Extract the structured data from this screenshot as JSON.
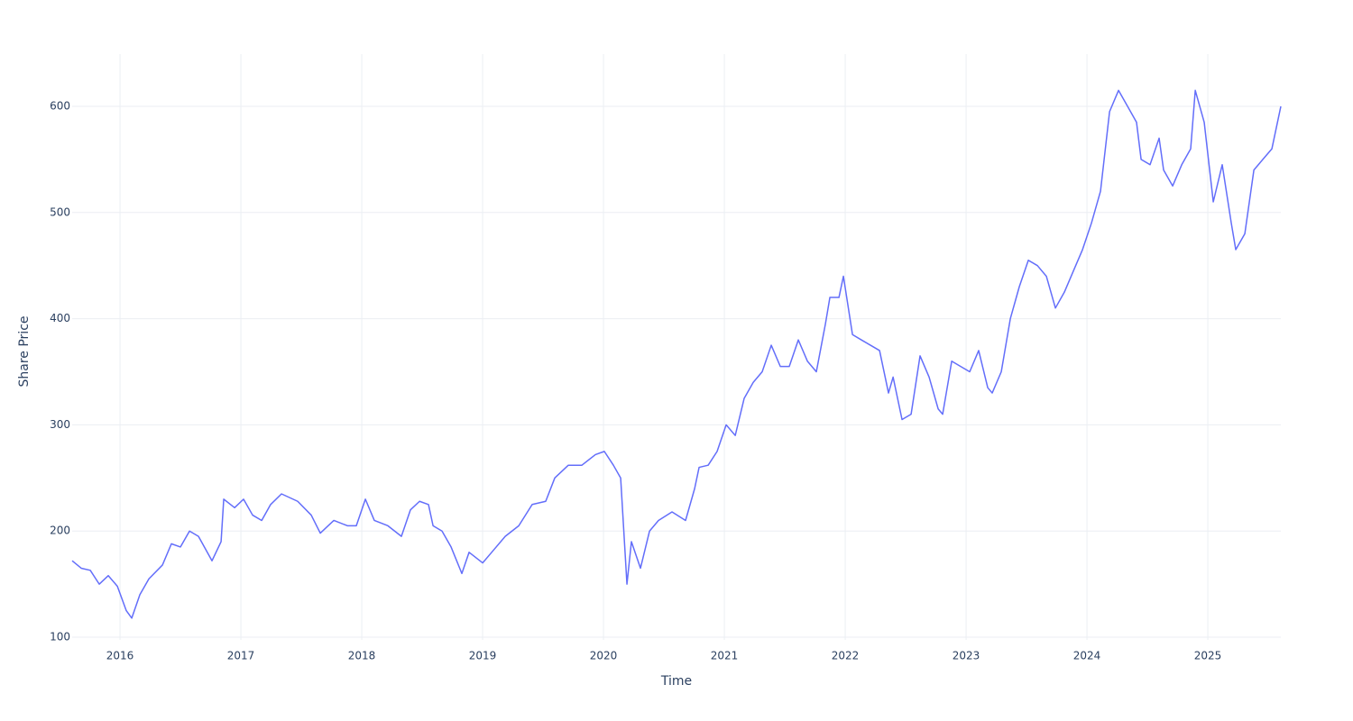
{
  "chart_data": {
    "type": "line",
    "x_label": "Time",
    "y_label": "Share Price",
    "x": [
      2015.604,
      2015.679,
      2015.754,
      2015.828,
      2015.903,
      2015.978,
      2016.052,
      2016.097,
      2016.164,
      2016.239,
      2016.351,
      2016.425,
      2016.5,
      2016.575,
      2016.649,
      2016.761,
      2016.836,
      2016.858,
      2016.948,
      2017.022,
      2017.097,
      2017.172,
      2017.246,
      2017.336,
      2017.47,
      2017.582,
      2017.657,
      2017.769,
      2017.881,
      2017.955,
      2018.03,
      2018.104,
      2018.216,
      2018.328,
      2018.403,
      2018.478,
      2018.552,
      2018.59,
      2018.664,
      2018.739,
      2018.828,
      2018.888,
      2019.0,
      2019.075,
      2019.187,
      2019.299,
      2019.41,
      2019.522,
      2019.597,
      2019.709,
      2019.821,
      2019.933,
      2020.007,
      2020.082,
      2020.142,
      2020.194,
      2020.231,
      2020.306,
      2020.381,
      2020.455,
      2020.567,
      2020.679,
      2020.754,
      2020.791,
      2020.866,
      2020.94,
      2021.015,
      2021.09,
      2021.164,
      2021.239,
      2021.313,
      2021.388,
      2021.463,
      2021.537,
      2021.612,
      2021.687,
      2021.761,
      2021.836,
      2021.873,
      2021.948,
      2021.985,
      2022.06,
      2022.134,
      2022.209,
      2022.284,
      2022.358,
      2022.396,
      2022.47,
      2022.545,
      2022.619,
      2022.694,
      2022.769,
      2022.806,
      2022.881,
      2022.955,
      2023.03,
      2023.104,
      2023.179,
      2023.216,
      2023.291,
      2023.366,
      2023.44,
      2023.515,
      2023.59,
      2023.664,
      2023.739,
      2023.813,
      2023.888,
      2023.963,
      2024.037,
      2024.112,
      2024.187,
      2024.261,
      2024.336,
      2024.41,
      2024.448,
      2024.522,
      2024.597,
      2024.634,
      2024.709,
      2024.784,
      2024.858,
      2024.896,
      2024.97,
      2025.045,
      2025.119,
      2025.194,
      2025.231,
      2025.306,
      2025.381,
      2025.455,
      2025.53,
      2025.604
    ],
    "series": [
      {
        "name": "Share Price",
        "color": "#636efa",
        "values": [
          172,
          165,
          163,
          150,
          158,
          148,
          125,
          118,
          140,
          155,
          168,
          188,
          185,
          200,
          195,
          172,
          190,
          230,
          222,
          230,
          215,
          210,
          225,
          235,
          228,
          215,
          198,
          210,
          205,
          205,
          230,
          210,
          205,
          195,
          220,
          228,
          225,
          205,
          200,
          185,
          160,
          180,
          170,
          180,
          195,
          205,
          225,
          228,
          250,
          262,
          262,
          272,
          275,
          262,
          250,
          150,
          190,
          165,
          200,
          210,
          218,
          210,
          240,
          260,
          262,
          275,
          300,
          290,
          325,
          340,
          350,
          375,
          355,
          355,
          380,
          360,
          350,
          395,
          420,
          420,
          440,
          385,
          380,
          375,
          370,
          330,
          345,
          305,
          310,
          365,
          345,
          315,
          310,
          360,
          355,
          350,
          370,
          335,
          330,
          350,
          400,
          430,
          455,
          450,
          440,
          410,
          425,
          445,
          465,
          490,
          520,
          595,
          615,
          600,
          585,
          550,
          545,
          570,
          540,
          525,
          545,
          560,
          615,
          585,
          510,
          545,
          490,
          465,
          480,
          540,
          550,
          560,
          600
        ]
      }
    ],
    "xlim": [
      2015.604,
      2025.604
    ],
    "ylim": [
      97.5,
      649.2
    ],
    "xticks": [
      2016,
      2017,
      2018,
      2019,
      2020,
      2021,
      2022,
      2023,
      2024,
      2025
    ],
    "yticks": [
      100,
      200,
      300,
      400,
      500,
      600
    ],
    "grid": true
  }
}
